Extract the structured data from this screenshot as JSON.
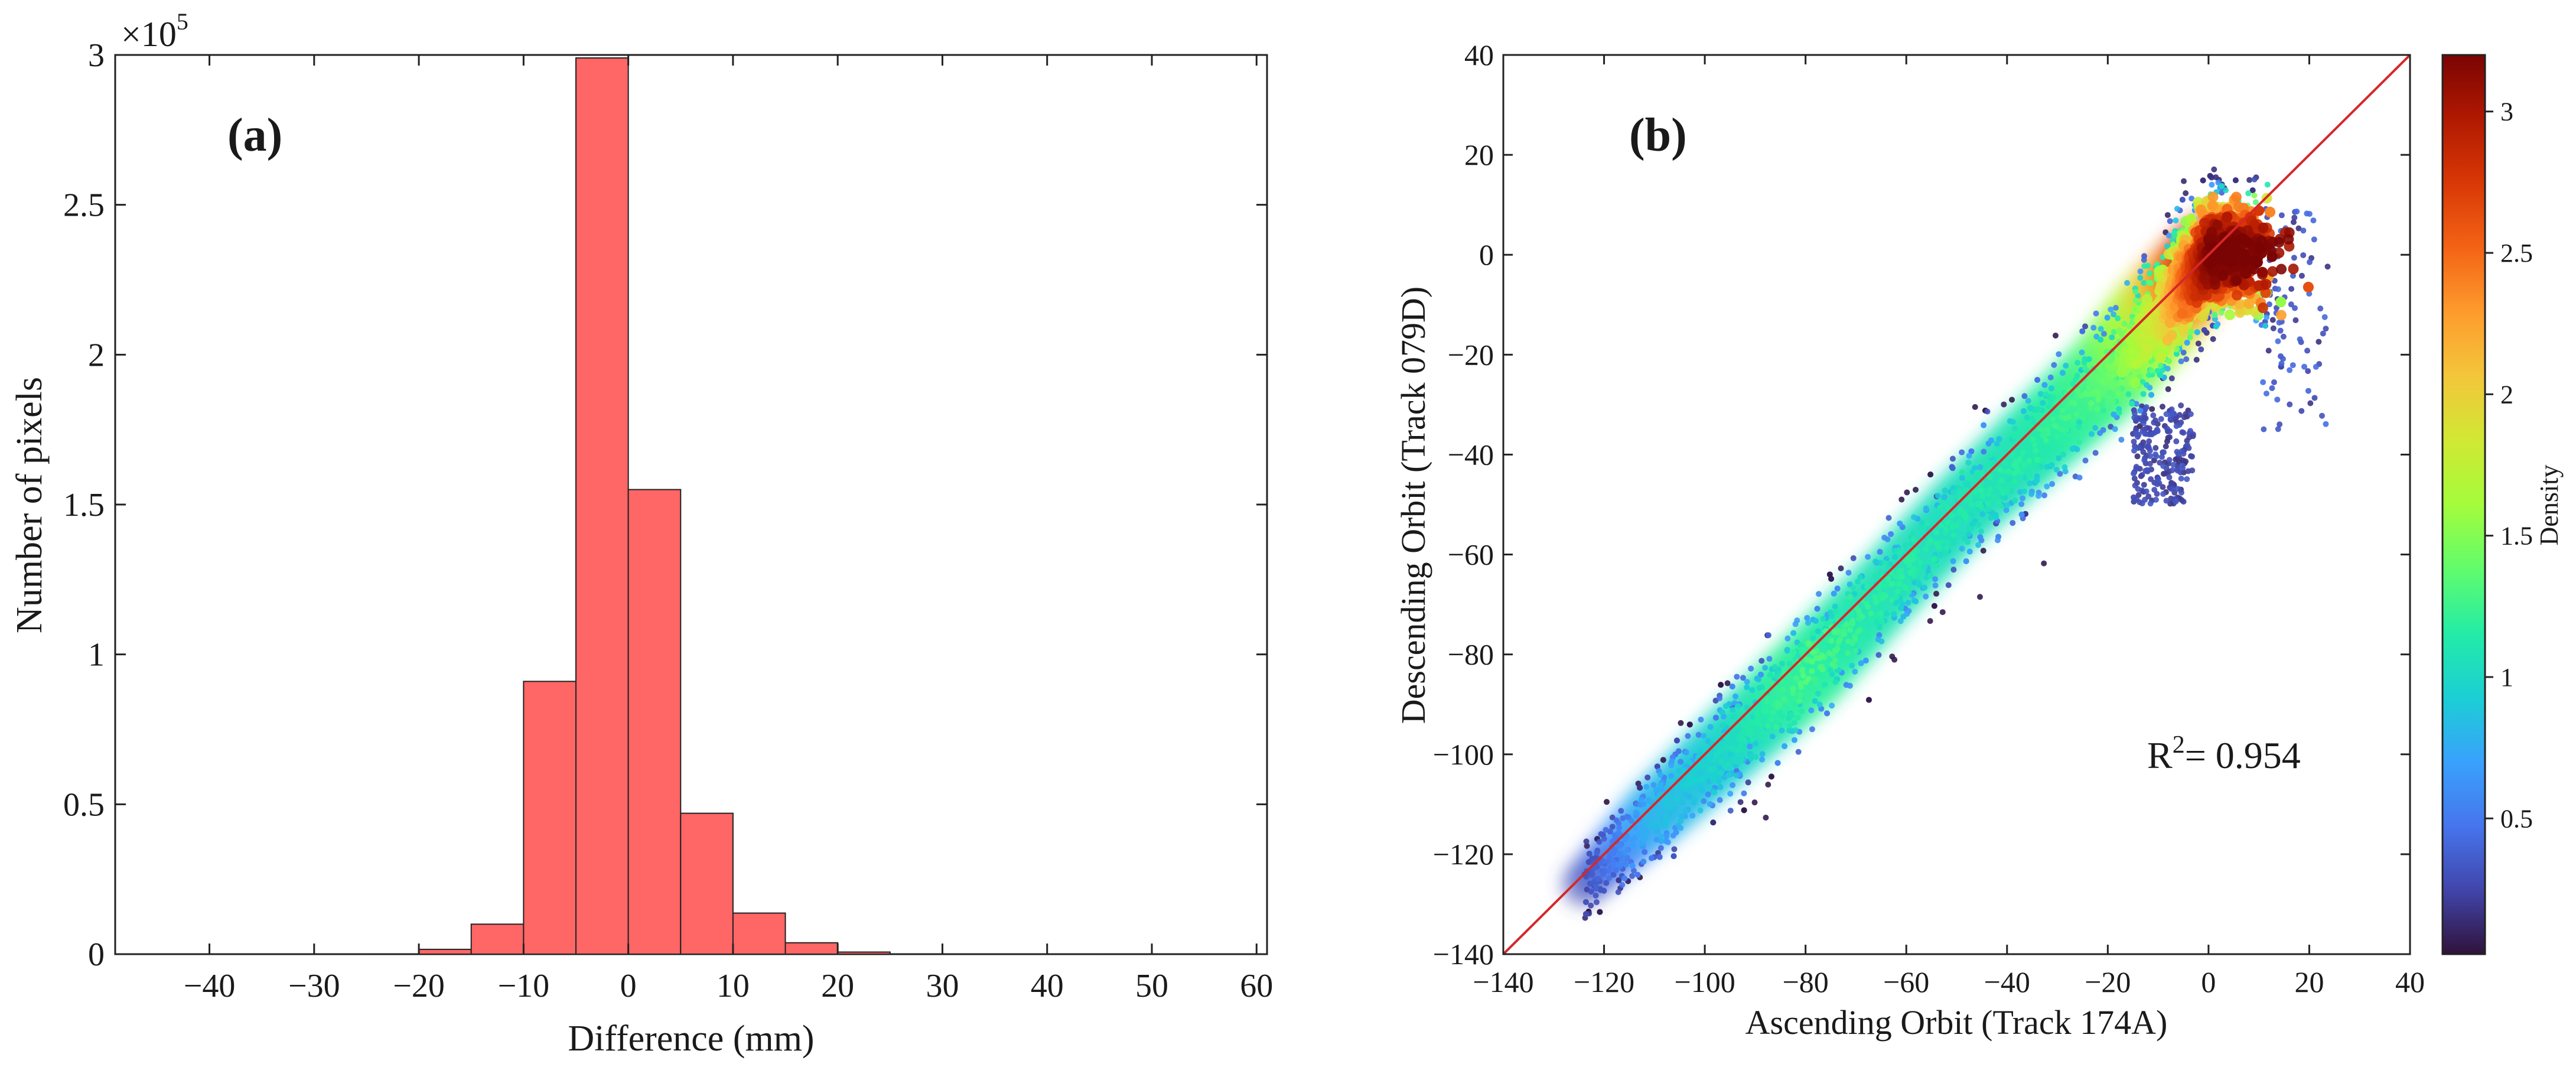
{
  "chart_data": [
    {
      "type": "bar",
      "panel_label": "(a)",
      "xlabel": "Difference (mm)",
      "ylabel": "Number of pixels",
      "y_scale_multiplier": "×10",
      "y_scale_exponent": "5",
      "xlim": [
        -49,
        61
      ],
      "ylim": [
        0,
        3
      ],
      "xticks": [
        -40,
        -30,
        -20,
        -10,
        0,
        10,
        20,
        30,
        40,
        50,
        60
      ],
      "xtick_labels": [
        "−40",
        "−30",
        "−20",
        "−10",
        "0",
        "10",
        "20",
        "30",
        "40",
        "50",
        "60"
      ],
      "yticks": [
        0,
        0.5,
        1,
        1.5,
        2,
        2.5,
        3
      ],
      "ytick_labels": [
        "0",
        "0.5",
        "1",
        "1.5",
        "2",
        "2.5",
        "3"
      ],
      "bar_color": "#ff6666",
      "bin_width": 5,
      "bins": [
        {
          "start": -45,
          "value": 0.001
        },
        {
          "start": -25,
          "value": 0.001
        },
        {
          "start": -20,
          "value": 0.016
        },
        {
          "start": -15,
          "value": 0.1
        },
        {
          "start": -10,
          "value": 0.91
        },
        {
          "start": -5,
          "value": 2.99
        },
        {
          "start": 0,
          "value": 1.55
        },
        {
          "start": 5,
          "value": 0.47
        },
        {
          "start": 10,
          "value": 0.137
        },
        {
          "start": 15,
          "value": 0.038
        },
        {
          "start": 20,
          "value": 0.007
        },
        {
          "start": 25,
          "value": 0.001
        },
        {
          "start": 45,
          "value": 0.001
        },
        {
          "start": 50,
          "value": 0.001
        }
      ]
    },
    {
      "type": "scatter",
      "panel_label": "(b)",
      "xlabel": "Ascending Orbit (Track 174A)",
      "ylabel": "Descending Orbit (Track 079D)",
      "xlim": [
        -140,
        40
      ],
      "ylim": [
        -140,
        40
      ],
      "xticks": [
        -140,
        -120,
        -100,
        -80,
        -60,
        -40,
        -20,
        0,
        20,
        40
      ],
      "xtick_labels": [
        "−140",
        "−120",
        "−100",
        "−80",
        "−60",
        "−40",
        "−20",
        "0",
        "20",
        "40"
      ],
      "yticks": [
        -140,
        -120,
        -100,
        -80,
        -60,
        -40,
        -20,
        0,
        20,
        40
      ],
      "ytick_labels": [
        "−140",
        "−120",
        "−100",
        "−80",
        "−60",
        "−40",
        "−20",
        "0",
        "20",
        "40"
      ],
      "annotation_prefix": "R",
      "annotation_superscript": "2",
      "annotation_value": "= 0.954",
      "reference_line": {
        "from": [
          -140,
          -140
        ],
        "to": [
          40,
          40
        ],
        "color": "#d62728"
      },
      "colorbar": {
        "label": "Density",
        "range": [
          0.02,
          3.2
        ],
        "ticks": [
          0.5,
          1,
          1.5,
          2,
          2.5,
          3
        ],
        "tick_labels": [
          "0.5",
          "1",
          "1.5",
          "2",
          "2.5",
          "3"
        ],
        "colormap": [
          "#30123b",
          "#4145ab",
          "#4675ed",
          "#39a2fc",
          "#1bcfd4",
          "#24eca6",
          "#61fc6c",
          "#a4fc3b",
          "#d1e834",
          "#f3c63a",
          "#fe9b2d",
          "#f36315",
          "#d93806",
          "#b11901",
          "#7a0403"
        ]
      },
      "density_band": [
        {
          "x": -124,
          "y": -126,
          "half_width": 6,
          "density": 0.3
        },
        {
          "x": -110,
          "y": -112,
          "half_width": 9,
          "density": 0.85
        },
        {
          "x": -95,
          "y": -98,
          "half_width": 10,
          "density": 1.05
        },
        {
          "x": -80,
          "y": -84,
          "half_width": 11,
          "density": 1.35
        },
        {
          "x": -65,
          "y": -68,
          "half_width": 10,
          "density": 1.2
        },
        {
          "x": -50,
          "y": -52,
          "half_width": 10,
          "density": 1.15
        },
        {
          "x": -35,
          "y": -38,
          "half_width": 11,
          "density": 1.2
        },
        {
          "x": -20,
          "y": -24,
          "half_width": 12,
          "density": 1.4
        },
        {
          "x": -10,
          "y": -12,
          "half_width": 13,
          "density": 1.9
        },
        {
          "x": 0,
          "y": 0,
          "half_width": 11,
          "density": 3.2
        }
      ],
      "outlier_cluster": {
        "x_range": [
          -15,
          -3
        ],
        "y_range": [
          -50,
          -30
        ],
        "density": 0.35
      },
      "scatter_sample_size": 3400
    }
  ]
}
